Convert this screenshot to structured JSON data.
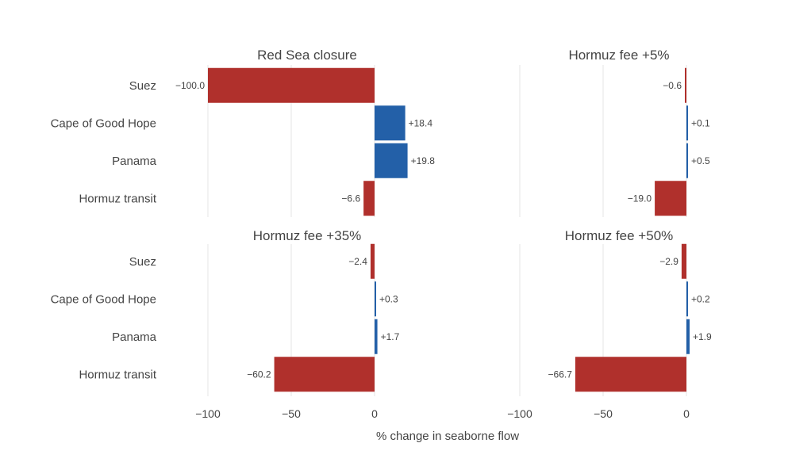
{
  "chart_data": {
    "type": "bar",
    "orientation": "horizontal",
    "xlabel": "% change in seaborne flow",
    "xlim": [
      -100,
      0
    ],
    "x_ticks": [
      -100,
      -50,
      0
    ],
    "x_tick_labels": [
      "−100",
      "−50",
      "0"
    ],
    "grid": true,
    "colors": {
      "negative": "#b0302c",
      "positive": "#2360a8"
    },
    "categories": [
      "Suez",
      "Cape of Good Hope",
      "Panama",
      "Hormuz transit"
    ],
    "panels": [
      {
        "title": "Red Sea closure",
        "values": [
          -100.0,
          18.4,
          19.8,
          -6.6
        ],
        "value_labels": [
          "−100.0",
          "+18.4",
          "+19.8",
          "−6.6"
        ]
      },
      {
        "title": "Hormuz fee +5%",
        "values": [
          -0.6,
          0.1,
          0.5,
          -19.0
        ],
        "value_labels": [
          "−0.6",
          "+0.1",
          "+0.5",
          "−19.0"
        ]
      },
      {
        "title": "Hormuz fee +35%",
        "values": [
          -2.4,
          0.3,
          1.7,
          -60.2
        ],
        "value_labels": [
          "−2.4",
          "+0.3",
          "+1.7",
          "−60.2"
        ]
      },
      {
        "title": "Hormuz fee +50%",
        "values": [
          -2.9,
          0.2,
          1.9,
          -66.7
        ],
        "value_labels": [
          "−2.9",
          "+0.2",
          "+1.9",
          "−66.7"
        ]
      }
    ]
  }
}
